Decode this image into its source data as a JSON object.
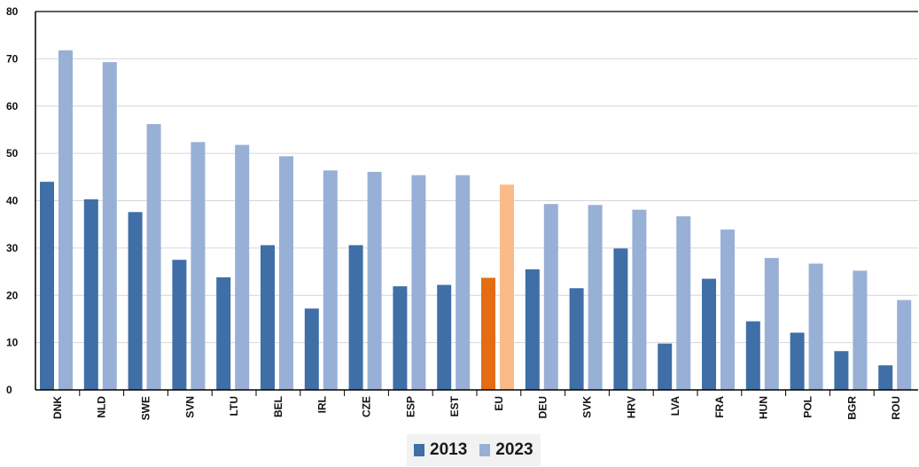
{
  "chart_data": {
    "type": "bar",
    "categories": [
      "DNK",
      "NLD",
      "SWE",
      "SVN",
      "LTU",
      "BEL",
      "IRL",
      "CZE",
      "ESP",
      "EST",
      "EU",
      "DEU",
      "SVK",
      "HRV",
      "LVA",
      "FRA",
      "HUN",
      "POL",
      "BGR",
      "ROU"
    ],
    "series": [
      {
        "name": "2013",
        "values": [
          44,
          40.3,
          37.6,
          27.5,
          23.8,
          30.6,
          17.2,
          30.6,
          21.9,
          22.2,
          23.7,
          25.5,
          21.5,
          29.9,
          9.8,
          23.5,
          14.5,
          12.1,
          8.2,
          5.2
        ]
      },
      {
        "name": "2023",
        "values": [
          71.8,
          69.3,
          56.2,
          52.4,
          51.8,
          49.4,
          46.4,
          46.1,
          45.4,
          45.4,
          43.4,
          39.3,
          39.1,
          38.1,
          36.7,
          33.9,
          27.9,
          26.7,
          25.2,
          19
        ]
      }
    ],
    "highlight_category": "EU",
    "ylim": [
      0,
      80
    ],
    "yticks": [
      0,
      10,
      20,
      30,
      40,
      50,
      60,
      70,
      80
    ],
    "title": "",
    "xlabel": "",
    "ylabel": "",
    "grid": true,
    "legend_position": "bottom-center",
    "colors": {
      "series_2013": "#3f6fa6",
      "series_2023": "#98b0d6",
      "highlight_2013": "#e46c12",
      "highlight_2023": "#f9bb8a",
      "grid": "#d6d6d6",
      "axis": "#000000"
    }
  }
}
